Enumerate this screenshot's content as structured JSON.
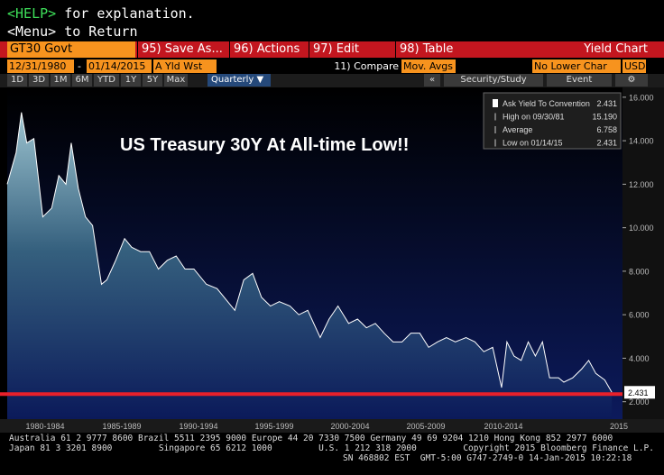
{
  "header": {
    "help_key": "<HELP>",
    "help_text": "for explanation.",
    "menu_line": "<Menu> to Return"
  },
  "toolbar": {
    "ticker": "GT30 Govt",
    "buttons": [
      "95) Save As...",
      "96) Actions",
      "97) Edit",
      "98) Table"
    ],
    "chart_name": "Yield Chart"
  },
  "settings": {
    "start_date": "12/31/1980",
    "dash": "-",
    "end_date": "01/14/2015",
    "field": "A Yld Wst",
    "compare": "11) Compare",
    "mov_avgs": "Mov. Avgs",
    "lower": "No Lower Char",
    "currency": "USD"
  },
  "periods": {
    "buttons": [
      "1D",
      "3D",
      "1M",
      "6M",
      "YTD",
      "1Y",
      "5Y",
      "Max"
    ],
    "frequency": "Quarterly ▼",
    "collapse": "«",
    "security_study": "Security/Study",
    "event": "Event",
    "settings_icon": "⚙"
  },
  "chart_data": {
    "type": "area",
    "annotation": "US Treasury 30Y At All-time Low!!",
    "x_labels": [
      "1980-1984",
      "1985-1989",
      "1990-1994",
      "1995-1999",
      "2000-2004",
      "2005-2009",
      "2010-2014",
      "2015"
    ],
    "x": [
      1981.0,
      1981.5,
      1981.8,
      1982.1,
      1982.5,
      1983.0,
      1983.5,
      1983.9,
      1984.3,
      1984.6,
      1985.0,
      1985.4,
      1985.8,
      1986.3,
      1986.6,
      1987.1,
      1987.6,
      1988.0,
      1988.5,
      1989.0,
      1989.5,
      1990.0,
      1990.5,
      1991.0,
      1991.5,
      1992.2,
      1992.8,
      1993.4,
      1993.8,
      1994.3,
      1994.8,
      1995.3,
      1995.8,
      1996.3,
      1996.9,
      1997.4,
      1997.9,
      1998.6,
      1999.1,
      1999.6,
      2000.2,
      2000.7,
      2001.2,
      2001.7,
      2002.2,
      2002.7,
      2003.2,
      2003.7,
      2004.2,
      2004.7,
      2005.2,
      2005.7,
      2006.2,
      2006.8,
      2007.3,
      2007.8,
      2008.3,
      2008.8,
      2009.1,
      2009.5,
      2009.9,
      2010.3,
      2010.7,
      2011.1,
      2011.5,
      2012.0,
      2012.3,
      2012.8,
      2013.3,
      2013.7,
      2014.1,
      2014.6,
      2015.0
    ],
    "series": [
      {
        "name": "Ask Yield To Convention",
        "color": "#ffffff",
        "values": [
          12.0,
          13.45,
          15.3,
          13.9,
          14.1,
          10.5,
          10.9,
          12.4,
          12.0,
          13.9,
          11.8,
          10.5,
          10.1,
          7.4,
          7.6,
          8.5,
          9.5,
          9.1,
          8.9,
          8.9,
          8.1,
          8.5,
          8.7,
          8.1,
          8.1,
          7.4,
          7.2,
          6.6,
          6.2,
          7.6,
          7.9,
          6.8,
          6.4,
          6.6,
          6.4,
          6.0,
          6.2,
          4.95,
          5.8,
          6.4,
          5.6,
          5.8,
          5.4,
          5.6,
          5.15,
          4.75,
          4.75,
          5.15,
          5.15,
          4.5,
          4.75,
          4.95,
          4.75,
          4.95,
          4.75,
          4.3,
          4.5,
          2.65,
          4.75,
          4.1,
          3.9,
          4.75,
          4.1,
          4.75,
          3.1,
          3.1,
          2.9,
          3.1,
          3.5,
          3.9,
          3.3,
          3.0,
          2.431
        ]
      }
    ],
    "last_label": "2.431",
    "xlim": [
      1981.0,
      2015.6
    ],
    "ylim": [
      1.2,
      16.45
    ],
    "yticks": [
      {
        "value": 2,
        "label": "2.000"
      },
      {
        "value": 4,
        "label": "4.000"
      },
      {
        "value": 6,
        "label": "6.000"
      },
      {
        "value": 8,
        "label": "8.000"
      },
      {
        "value": 10,
        "label": "10.000"
      },
      {
        "value": 12,
        "label": "12.000"
      },
      {
        "value": 14,
        "label": "14.000"
      },
      {
        "value": 16,
        "label": "16.000"
      }
    ],
    "reference_line": {
      "value": 2.431,
      "color": "#e8202a"
    },
    "legend": {
      "rows": [
        {
          "label": "Ask Yield To Convention",
          "value": "2.431"
        },
        {
          "label": "High on 09/30/81",
          "value": "15.190"
        },
        {
          "label": "Average",
          "value": "6.758"
        },
        {
          "label": "Low on 01/14/15",
          "value": "2.431"
        }
      ]
    }
  },
  "footer": {
    "lines": [
      "Australia 61 2 9777 8600 Brazil 5511 2395 9000 Europe 44 20 7330 7500 Germany 49 69 9204 1210 Hong Kong 852 2977 6000",
      "Japan 81 3 3201 8900         Singapore 65 6212 1000         U.S. 1 212 318 2000         Copyright 2015 Bloomberg Finance L.P.",
      "SN 468802 EST  GMT-5:00 G747-2749-0 14-Jan-2015 10:22:18"
    ]
  }
}
